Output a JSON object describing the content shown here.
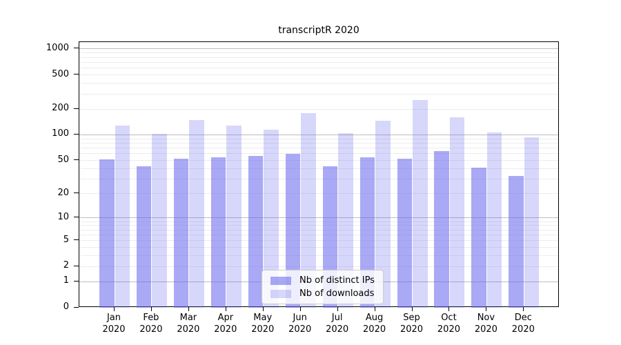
{
  "chart_data": {
    "type": "bar",
    "title": "transcriptR 2020",
    "categories": [
      "Jan 2020",
      "Feb 2020",
      "Mar 2020",
      "Apr 2020",
      "May 2020",
      "Jun 2020",
      "Jul 2020",
      "Aug 2020",
      "Sep 2020",
      "Oct 2020",
      "Nov 2020",
      "Dec 2020"
    ],
    "series": [
      {
        "name": "Nb of distinct IPs",
        "color": "rgba(102,102,238,0.56)",
        "values": [
          51,
          43,
          52,
          54,
          57,
          60,
          43,
          54,
          52,
          64,
          41,
          33
        ]
      },
      {
        "name": "Nb of downloads",
        "color": "rgba(102,102,238,0.26)",
        "values": [
          128,
          102,
          150,
          128,
          114,
          180,
          104,
          145,
          255,
          160,
          107,
          93
        ]
      }
    ],
    "xlabel": "",
    "ylabel": "",
    "y_scale": "log1p",
    "ylim": [
      0,
      1200
    ],
    "y_ticks": [
      1000,
      500,
      200,
      100,
      50,
      20,
      10,
      5,
      2,
      1,
      0
    ],
    "grid": {
      "major": [
        1,
        10,
        100,
        1000
      ],
      "minor": [
        2,
        3,
        4,
        5,
        6,
        7,
        8,
        9,
        20,
        30,
        40,
        50,
        60,
        70,
        80,
        90,
        200,
        300,
        400,
        500,
        600,
        700,
        800,
        900
      ]
    },
    "legend_position": "lower-center"
  },
  "colors": {
    "major_grid": "#bcbcbc",
    "minor_grid": "#ececec",
    "axis": "#000000",
    "legend_border": "#cccccc"
  }
}
